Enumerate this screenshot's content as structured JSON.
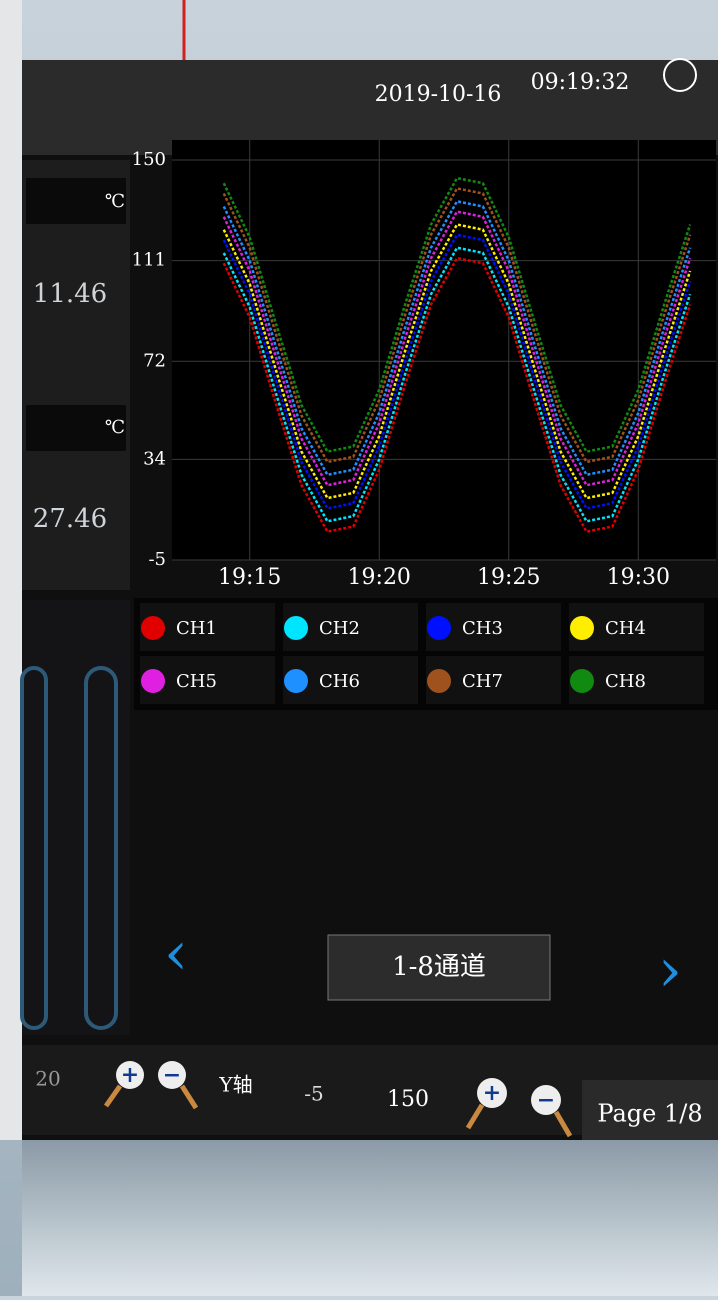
{
  "header": {
    "date": "2019-10-16",
    "time": "09:19:32"
  },
  "left_panel": {
    "unit": "℃",
    "values": [
      "11.46",
      "27.46"
    ],
    "scale_value": "20"
  },
  "chart_data": {
    "type": "line",
    "x": [
      "19:14",
      "19:15",
      "19:16",
      "19:17",
      "19:18",
      "19:19",
      "19:20",
      "19:21",
      "19:22",
      "19:23",
      "19:24",
      "19:25",
      "19:26",
      "19:27",
      "19:28",
      "19:29",
      "19:30",
      "19:31",
      "19:32"
    ],
    "xlim": [
      "19:12",
      "19:33"
    ],
    "xticks": [
      "19:15",
      "19:20",
      "19:25",
      "19:30"
    ],
    "ylim": [
      -5,
      150
    ],
    "yticks": [
      -5,
      34,
      72,
      111,
      150
    ],
    "grid": true,
    "series": [
      {
        "name": "CH1",
        "color": "#e00000",
        "values": [
          110,
          89,
          56,
          24,
          6,
          8,
          30,
          63,
          94,
          112,
          110,
          89,
          56,
          24,
          6,
          8,
          30,
          63,
          94
        ]
      },
      {
        "name": "CH2",
        "color": "#00e5ff",
        "values": [
          114,
          93,
          60,
          28,
          10,
          12,
          34,
          67,
          98,
          116,
          114,
          93,
          60,
          28,
          10,
          12,
          34,
          67,
          98
        ]
      },
      {
        "name": "CH3",
        "color": "#0010ff",
        "values": [
          119,
          98,
          65,
          33,
          15,
          17,
          39,
          72,
          103,
          121,
          119,
          98,
          65,
          33,
          15,
          17,
          39,
          72,
          103
        ]
      },
      {
        "name": "CH4",
        "color": "#ffee00",
        "values": [
          123,
          102,
          69,
          37,
          19,
          21,
          43,
          76,
          107,
          125,
          123,
          102,
          69,
          37,
          19,
          21,
          43,
          76,
          107
        ]
      },
      {
        "name": "CH5",
        "color": "#e020e0",
        "values": [
          128,
          107,
          74,
          42,
          24,
          26,
          48,
          81,
          112,
          130,
          128,
          107,
          74,
          42,
          24,
          26,
          48,
          81,
          112
        ]
      },
      {
        "name": "CH6",
        "color": "#1e90ff",
        "values": [
          132,
          111,
          78,
          46,
          28,
          30,
          52,
          85,
          116,
          134,
          132,
          111,
          78,
          46,
          28,
          30,
          52,
          85,
          116
        ]
      },
      {
        "name": "CH7",
        "color": "#a0521e",
        "values": [
          137,
          116,
          83,
          51,
          33,
          35,
          57,
          90,
          121,
          139,
          137,
          116,
          83,
          51,
          33,
          35,
          57,
          90,
          121
        ]
      },
      {
        "name": "CH8",
        "color": "#108a10",
        "values": [
          141,
          120,
          87,
          55,
          37,
          39,
          61,
          94,
          125,
          143,
          141,
          120,
          87,
          55,
          37,
          39,
          61,
          94,
          125
        ]
      }
    ]
  },
  "navigation": {
    "channel_group": "1-8通道"
  },
  "toolbar": {
    "axis_label": "Y轴",
    "y_min": "-5",
    "y_max": "150",
    "page": "Page 1/8"
  }
}
